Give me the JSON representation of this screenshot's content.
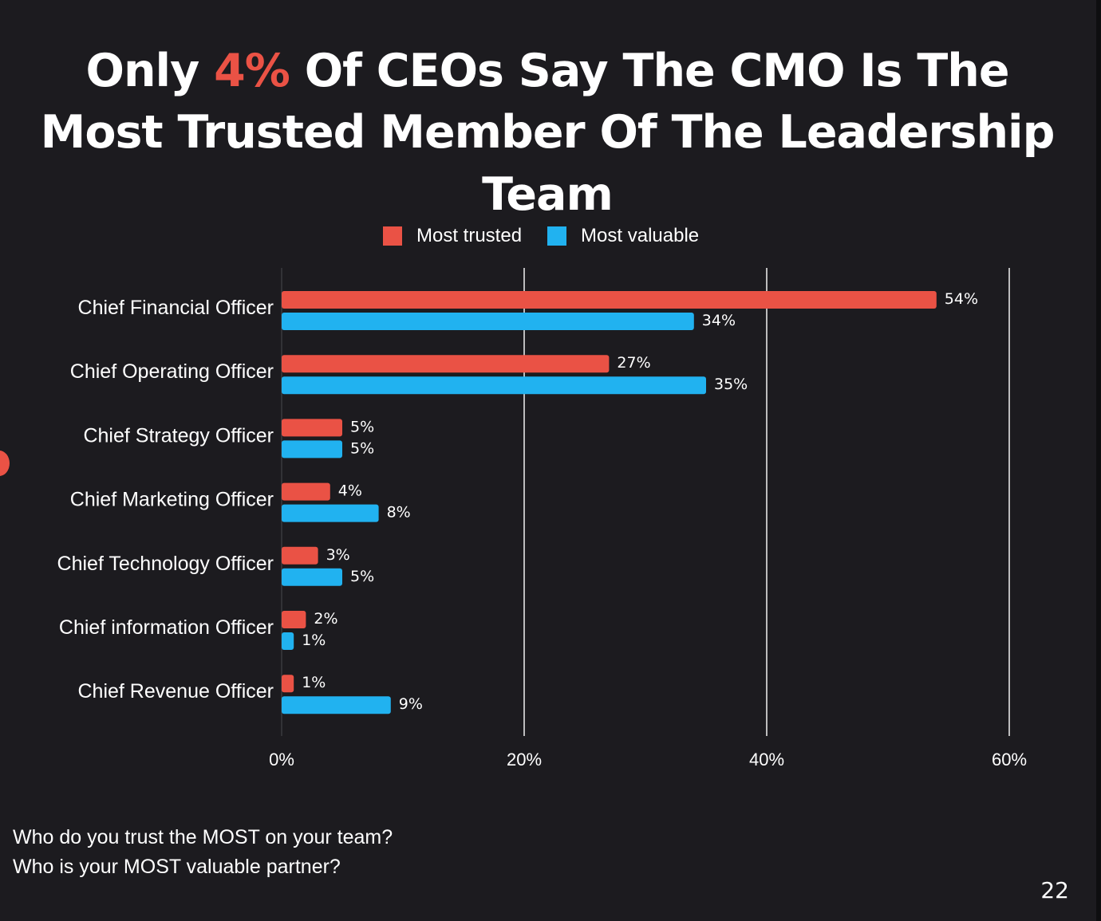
{
  "title": {
    "line1_before": "Only ",
    "line1_accent": "4%",
    "line1_after": " Of CEOs Say The CMO Is The",
    "line2": "Most Trusted Member Of The Leadership Team"
  },
  "legend": {
    "items": [
      {
        "label": "Most trusted",
        "color": "#ea5245"
      },
      {
        "label": "Most valuable",
        "color": "#21b2f0"
      }
    ]
  },
  "chart_data": {
    "type": "bar",
    "orientation": "horizontal",
    "title": "Only 4% Of CEOs Say The CMO Is The Most Trusted Member Of The Leadership Team",
    "categories": [
      "Chief Financial Officer",
      "Chief Operating Officer",
      "Chief Strategy Officer",
      "Chief Marketing Officer",
      "Chief Technology Officer",
      "Chief information Officer",
      "Chief Revenue Officer"
    ],
    "series": [
      {
        "name": "Most trusted",
        "color": "#ea5245",
        "values": [
          54,
          27,
          5,
          4,
          3,
          2,
          1
        ]
      },
      {
        "name": "Most valuable",
        "color": "#21b2f0",
        "values": [
          34,
          35,
          5,
          8,
          5,
          1,
          9
        ]
      }
    ],
    "xlim": [
      0,
      60
    ],
    "xticks": [
      0,
      20,
      40,
      60
    ],
    "xtick_labels": [
      "0%",
      "20%",
      "40%",
      "60%"
    ],
    "value_suffix": "%",
    "grid": true,
    "legend_position": "top-center"
  },
  "questions": {
    "q1": "Who do you trust the MOST on your team?",
    "q2": "Who is your MOST valuable partner?"
  },
  "page_number": "22"
}
